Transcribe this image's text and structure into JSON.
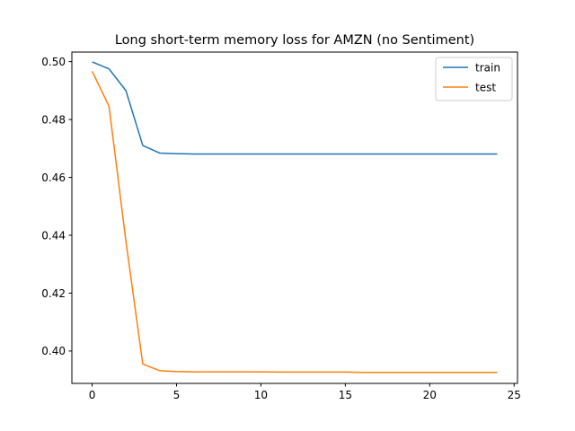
{
  "chart_data": {
    "type": "line",
    "title": "Long short-term memory loss for AMZN (no Sentiment)",
    "xlabel": "",
    "ylabel": "",
    "xlim": [
      -1.2,
      25.2
    ],
    "ylim": [
      0.3888,
      0.5033
    ],
    "x_ticks": [
      0,
      5,
      10,
      15,
      20,
      25
    ],
    "y_ticks": [
      0.4,
      0.42,
      0.44,
      0.46,
      0.48,
      0.5
    ],
    "x": [
      0,
      1,
      2,
      3,
      4,
      5,
      6,
      7,
      8,
      9,
      10,
      11,
      12,
      13,
      14,
      15,
      16,
      17,
      18,
      19,
      20,
      21,
      22,
      23,
      24
    ],
    "series": [
      {
        "name": "train",
        "color": "#1f77b4",
        "values": [
          0.4999,
          0.4975,
          0.49,
          0.471,
          0.4684,
          0.4682,
          0.4681,
          0.4681,
          0.4681,
          0.4681,
          0.4681,
          0.4681,
          0.4681,
          0.4681,
          0.4681,
          0.4681,
          0.4681,
          0.4681,
          0.4681,
          0.4681,
          0.4681,
          0.4681,
          0.4681,
          0.4681,
          0.4681
        ]
      },
      {
        "name": "test",
        "color": "#ff7f0e",
        "values": [
          0.4967,
          0.4846,
          0.438,
          0.3955,
          0.3932,
          0.3929,
          0.3928,
          0.3928,
          0.3928,
          0.3928,
          0.3928,
          0.3927,
          0.3927,
          0.3927,
          0.3927,
          0.3927,
          0.3926,
          0.3926,
          0.3926,
          0.3926,
          0.3926,
          0.3926,
          0.3926,
          0.3926,
          0.3926
        ]
      }
    ],
    "legend_position": "top-right",
    "grid": false
  }
}
